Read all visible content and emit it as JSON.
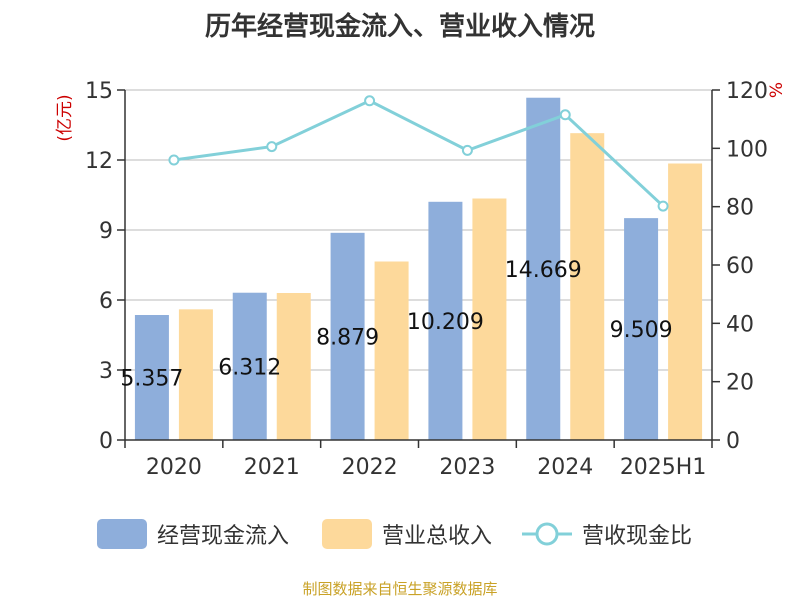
{
  "chart_data": {
    "type": "bar",
    "title": "历年经营现金流入、营业收入情况",
    "categories": [
      "2020",
      "2021",
      "2022",
      "2023",
      "2024",
      "2025H1"
    ],
    "y_left": {
      "unit_label": "(亿元)",
      "ylim": [
        0,
        15
      ],
      "ticks": [
        0,
        3,
        6,
        9,
        12,
        15
      ]
    },
    "y_right": {
      "unit_label": "%",
      "ylim": [
        0,
        120
      ],
      "ticks": [
        0,
        20,
        40,
        60,
        80,
        100,
        120
      ]
    },
    "series": [
      {
        "name": "经营现金流入",
        "type": "bar",
        "axis": "left",
        "color": "#8eaedb",
        "values": [
          5.357,
          6.312,
          8.879,
          10.209,
          14.669,
          9.509
        ],
        "data_labels": [
          "5.357",
          "6.312",
          "8.879",
          "10.209",
          "14.669",
          "9.509"
        ]
      },
      {
        "name": "营业总收入",
        "type": "bar",
        "axis": "left",
        "color": "#fdd99b",
        "values": [
          5.6,
          6.3,
          7.65,
          10.35,
          13.15,
          11.85
        ]
      },
      {
        "name": "营收现金比",
        "type": "line",
        "axis": "right",
        "color": "#82d0d9",
        "values": [
          96.0,
          100.6,
          116.3,
          99.3,
          111.5,
          80.2
        ]
      }
    ],
    "grid": true,
    "legend_position": "bottom"
  },
  "source_note": "制图数据来自恒生聚源数据库",
  "colors": {
    "title": "#333333",
    "left_unit": "#cc0000",
    "right_unit": "#cc0000",
    "axis": "#333333",
    "grid": "#bbbbbb",
    "source": "#c9a227"
  }
}
